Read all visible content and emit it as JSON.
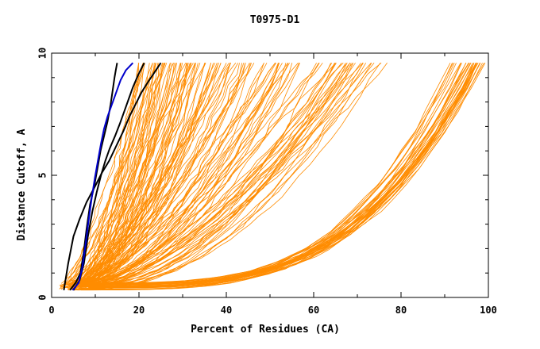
{
  "chart_data": {
    "type": "line",
    "title": "T0975-D1",
    "xlabel": "Percent of Residues (CA)",
    "ylabel": "Distance Cutoff, A",
    "xlim": [
      0,
      100
    ],
    "ylim": [
      0,
      10
    ],
    "xticks": [
      0,
      20,
      40,
      60,
      80,
      100
    ],
    "yticks": [
      0,
      5,
      10
    ],
    "grid": false,
    "legend": "none",
    "colors": {
      "background": "#ffffff",
      "orange": "#ff8c00",
      "black": "#000000",
      "blue": "#0000cc"
    },
    "background_groups": [
      {
        "color": "#ff8c00",
        "count": 40,
        "start": [
          4,
          0.3
        ],
        "end": [
          26,
          9.6
        ],
        "spread_x": 6
      },
      {
        "color": "#ff8c00",
        "count": 45,
        "start": [
          6,
          0.4
        ],
        "end": [
          42,
          9.6
        ],
        "spread_x": 12
      },
      {
        "color": "#ff8c00",
        "count": 45,
        "start": [
          7,
          0.3
        ],
        "end": [
          64,
          9.6
        ],
        "spread_x": 14
      },
      {
        "color": "#ff8c00",
        "count": 35,
        "start": [
          8,
          0.3
        ],
        "end": [
          95,
          9.6
        ],
        "spread_x": 4
      }
    ],
    "highlight_series": [
      {
        "color": "#000000",
        "x": [
          4.2,
          5.5,
          6.6,
          7.3,
          8.0,
          8.8,
          9.8,
          10.5,
          11.2,
          12.0,
          12.8,
          13.5,
          14.0,
          14.4,
          14.7,
          15.0
        ],
        "y": [
          0.3,
          0.6,
          1.0,
          1.8,
          2.8,
          3.8,
          4.6,
          5.3,
          6.0,
          6.6,
          7.2,
          7.9,
          8.5,
          9.0,
          9.3,
          9.6
        ]
      },
      {
        "color": "#000000",
        "x": [
          5.0,
          6.4,
          7.4,
          8.3,
          9.3,
          10.3,
          11.3,
          12.3,
          13.3,
          14.5,
          15.6,
          16.6,
          17.6,
          18.6,
          19.8,
          21.2
        ],
        "y": [
          0.3,
          0.7,
          1.4,
          2.5,
          3.5,
          4.3,
          5.0,
          5.6,
          6.1,
          6.6,
          7.1,
          7.6,
          8.1,
          8.6,
          9.1,
          9.6
        ]
      },
      {
        "color": "#000000",
        "x": [
          2.8,
          3.8,
          5.0,
          6.4,
          8.0,
          9.8,
          11.5,
          13.2,
          14.8,
          16.4,
          17.8,
          19.2,
          20.6,
          22.0,
          23.5,
          25.0
        ],
        "y": [
          0.3,
          1.4,
          2.5,
          3.2,
          3.9,
          4.5,
          5.1,
          5.6,
          6.2,
          6.8,
          7.4,
          7.9,
          8.4,
          8.8,
          9.2,
          9.6
        ]
      },
      {
        "color": "#0000cc",
        "x": [
          4.8,
          6.2,
          7.0,
          7.8,
          8.5,
          9.2,
          9.9,
          10.6,
          11.3,
          12.0,
          12.8,
          13.8,
          14.8,
          15.8,
          17.0,
          18.6
        ],
        "y": [
          0.3,
          0.6,
          1.2,
          2.2,
          3.2,
          4.1,
          4.9,
          5.6,
          6.3,
          6.9,
          7.4,
          7.9,
          8.4,
          8.9,
          9.3,
          9.6
        ]
      }
    ]
  }
}
